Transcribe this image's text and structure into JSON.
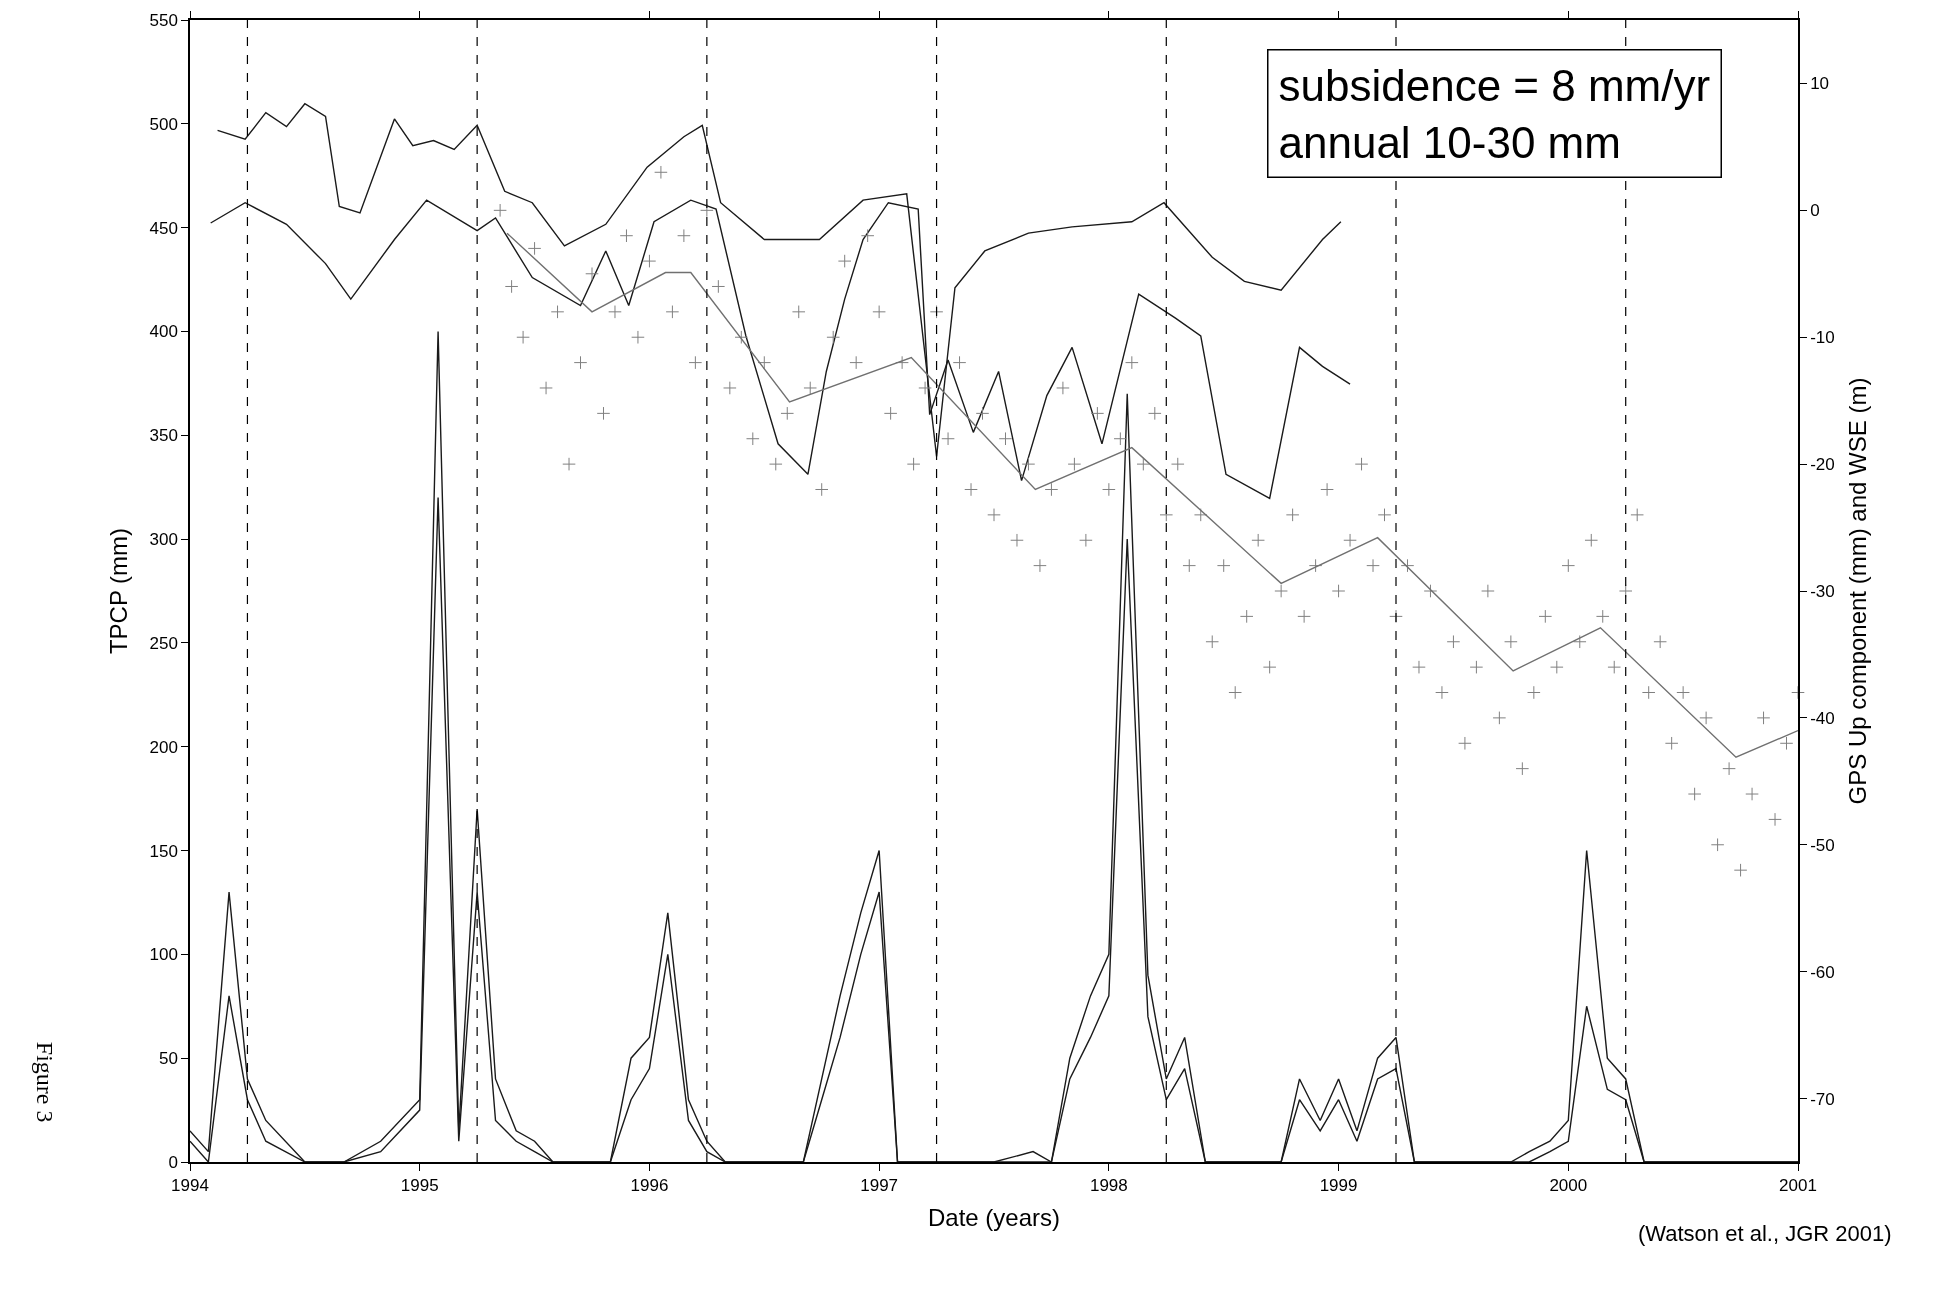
{
  "chart_data": {
    "type": "line",
    "xlabel": "Date (years)",
    "ylabel": "TPCP (mm)",
    "y2label": "GPS Up component (mm) and WSE (m)",
    "xlim": [
      1994,
      2001
    ],
    "xticks": [
      1994,
      1995,
      1996,
      1997,
      1998,
      1999,
      2000,
      2001
    ],
    "ylim": [
      0,
      550
    ],
    "yticks": [
      0,
      50,
      100,
      150,
      200,
      250,
      300,
      350,
      400,
      450,
      500,
      550
    ],
    "y2lim": [
      -75,
      15
    ],
    "y2ticks": [
      -70,
      -60,
      -50,
      -40,
      -30,
      -20,
      -10,
      0,
      10
    ],
    "legend": false,
    "annotations": [
      "subsidence = 8 mm/yr\nannual 10-30 mm",
      "(Watson et al., JGR 2001)",
      "Figure 3"
    ],
    "ref_lines": [
      {
        "axis": "x",
        "value": 1994.25,
        "color": "#000000",
        "line_style": "dashed"
      },
      {
        "axis": "x",
        "value": 1995.25,
        "color": "#000000",
        "line_style": "dashed"
      },
      {
        "axis": "x",
        "value": 1996.25,
        "color": "#000000",
        "line_style": "dashed"
      },
      {
        "axis": "x",
        "value": 1997.25,
        "color": "#000000",
        "line_style": "dashed"
      },
      {
        "axis": "x",
        "value": 1998.25,
        "color": "#000000",
        "line_style": "dashed"
      },
      {
        "axis": "x",
        "value": 1999.25,
        "color": "#000000",
        "line_style": "dashed"
      },
      {
        "axis": "x",
        "value": 2000.25,
        "color": "#000000",
        "line_style": "dashed"
      }
    ],
    "series": [
      {
        "color": "#1a1a1a",
        "x": [
          1994.0,
          1994.08,
          1994.17,
          1994.25,
          1994.33,
          1994.5,
          1994.67,
          1994.83,
          1995.0,
          1995.08,
          1995.17,
          1995.25,
          1995.33,
          1995.42,
          1995.5,
          1995.58,
          1995.83,
          1995.92,
          1996.0,
          1996.08,
          1996.17,
          1996.25,
          1996.33,
          1996.67,
          1996.75,
          1996.83,
          1996.92,
          1997.0,
          1997.08,
          1997.17,
          1997.5,
          1997.67,
          1997.75,
          1997.83,
          1997.92,
          1998.0,
          1998.08,
          1998.17,
          1998.25,
          1998.33,
          1998.42,
          1998.58,
          1998.75,
          1998.83,
          1998.92,
          1999.0,
          1999.08,
          1999.17,
          1999.25,
          1999.33,
          1999.5,
          1999.67,
          1999.75,
          1999.83,
          1999.92,
          2000.0,
          2000.08,
          2000.17,
          2000.25,
          2000.33,
          2001.0
        ],
        "values": [
          15,
          5,
          130,
          40,
          20,
          0,
          0,
          10,
          30,
          400,
          15,
          170,
          40,
          15,
          10,
          0,
          0,
          50,
          60,
          120,
          30,
          10,
          0,
          0,
          40,
          80,
          120,
          150,
          0,
          0,
          0,
          5,
          0,
          50,
          80,
          100,
          370,
          90,
          40,
          60,
          0,
          0,
          0,
          40,
          20,
          40,
          15,
          50,
          60,
          0,
          0,
          0,
          0,
          5,
          10,
          20,
          150,
          50,
          40,
          0,
          0
        ]
      },
      {
        "color": "#1a1a1a",
        "x": [
          1994.0,
          1994.08,
          1994.17,
          1994.25,
          1994.33,
          1994.5,
          1994.67,
          1994.83,
          1995.0,
          1995.08,
          1995.17,
          1995.25,
          1995.33,
          1995.42,
          1995.5,
          1995.58,
          1995.83,
          1995.92,
          1996.0,
          1996.08,
          1996.17,
          1996.25,
          1996.33,
          1996.67,
          1996.75,
          1996.83,
          1996.92,
          1997.0,
          1997.08,
          1997.17,
          1997.5,
          1997.67,
          1997.75,
          1997.83,
          1997.92,
          1998.0,
          1998.08,
          1998.17,
          1998.25,
          1998.33,
          1998.42,
          1998.58,
          1998.75,
          1998.83,
          1998.92,
          1999.0,
          1999.08,
          1999.17,
          1999.25,
          1999.33,
          1999.5,
          1999.67,
          1999.75,
          1999.83,
          1999.92,
          2000.0,
          2000.08,
          2000.17,
          2000.25,
          2000.33,
          2001.0
        ],
        "values": [
          10,
          0,
          80,
          30,
          10,
          0,
          0,
          5,
          25,
          320,
          10,
          130,
          20,
          10,
          5,
          0,
          0,
          30,
          45,
          100,
          20,
          5,
          0,
          0,
          30,
          60,
          100,
          130,
          0,
          0,
          0,
          0,
          0,
          40,
          60,
          80,
          300,
          70,
          30,
          45,
          0,
          0,
          0,
          30,
          15,
          30,
          10,
          40,
          45,
          0,
          0,
          0,
          0,
          0,
          5,
          10,
          75,
          35,
          30,
          0,
          0
        ]
      },
      {
        "color": "#1a1a1a",
        "axis": "y2",
        "x": [
          1994.12,
          1994.24,
          1994.33,
          1994.42,
          1994.5,
          1994.59,
          1994.65,
          1994.74,
          1994.89,
          1994.97,
          1995.06,
          1995.15,
          1995.25,
          1995.37,
          1995.49,
          1995.63,
          1995.81,
          1995.99,
          1996.15,
          1996.23,
          1996.31,
          1996.5,
          1996.74,
          1996.93,
          1997.12,
          1997.25,
          1997.33,
          1997.46,
          1997.65,
          1997.84,
          1998.1,
          1998.24,
          1998.45,
          1998.59,
          1998.75,
          1998.93,
          1999.01
        ],
        "values": [
          6.3,
          5.6,
          7.7,
          6.6,
          8.4,
          7.4,
          0.3,
          -0.2,
          7.2,
          5.1,
          5.5,
          4.8,
          6.7,
          1.5,
          0.6,
          -2.8,
          -1.1,
          3.4,
          5.8,
          6.7,
          0.6,
          -2.3,
          -2.3,
          0.8,
          1.3,
          -19.4,
          -6.1,
          -3.2,
          -1.8,
          -1.3,
          -0.9,
          0.6,
          -3.7,
          -5.6,
          -6.3,
          -2.3,
          -0.9
        ]
      },
      {
        "color": "#1a1a1a",
        "axis": "y2",
        "x": [
          1994.09,
          1994.24,
          1994.42,
          1994.59,
          1994.7,
          1994.89,
          1995.03,
          1995.25,
          1995.33,
          1995.49,
          1995.7,
          1995.81,
          1995.91,
          1996.02,
          1996.18,
          1996.29,
          1996.42,
          1996.56,
          1996.69,
          1996.77,
          1996.85,
          1996.93,
          1997.04,
          1997.17,
          1997.22,
          1997.3,
          1997.41,
          1997.52,
          1997.62,
          1997.73,
          1997.84,
          1997.97,
          1998.13,
          1998.29,
          1998.4,
          1998.51,
          1998.7,
          1998.83,
          1998.93,
          1999.05
        ],
        "values": [
          -1.0,
          0.6,
          -1.1,
          -4.2,
          -7.0,
          -2.3,
          0.8,
          -1.6,
          -0.6,
          -5.3,
          -7.5,
          -3.2,
          -7.5,
          -0.9,
          0.8,
          0.1,
          -9.9,
          -18.4,
          -20.8,
          -12.7,
          -7.0,
          -2.3,
          0.6,
          0.1,
          -16.1,
          -11.8,
          -17.5,
          -12.7,
          -21.3,
          -14.6,
          -10.8,
          -18.4,
          -6.6,
          -8.5,
          -9.9,
          -20.8,
          -22.7,
          -10.8,
          -12.3,
          -13.7
        ]
      },
      {
        "type": "scatter",
        "color": "#808080",
        "axis": "y2",
        "marker": "cross",
        "x": [
          1995.35,
          1995.4,
          1995.45,
          1995.5,
          1995.55,
          1995.6,
          1995.65,
          1995.7,
          1995.75,
          1995.8,
          1995.85,
          1995.9,
          1995.95,
          1996.0,
          1996.05,
          1996.1,
          1996.15,
          1996.2,
          1996.25,
          1996.3,
          1996.35,
          1996.4,
          1996.45,
          1996.5,
          1996.55,
          1996.6,
          1996.65,
          1996.7,
          1996.75,
          1996.8,
          1996.85,
          1996.9,
          1996.95,
          1997.0,
          1997.05,
          1997.1,
          1997.15,
          1997.2,
          1997.25,
          1997.3,
          1997.35,
          1997.4,
          1997.45,
          1997.5,
          1997.55,
          1997.6,
          1997.65,
          1997.7,
          1997.75,
          1997.8,
          1997.85,
          1997.9,
          1997.95,
          1998.0,
          1998.05,
          1998.1,
          1998.15,
          1998.2,
          1998.25,
          1998.3,
          1998.35,
          1998.4,
          1998.45,
          1998.5,
          1998.55,
          1998.6,
          1998.65,
          1998.7,
          1998.75,
          1998.8,
          1998.85,
          1998.9,
          1998.95,
          1999.0,
          1999.05,
          1999.1,
          1999.15,
          1999.2,
          1999.25,
          1999.3,
          1999.35,
          1999.4,
          1999.45,
          1999.5,
          1999.55,
          1999.6,
          1999.65,
          1999.7,
          1999.75,
          1999.8,
          1999.85,
          1999.9,
          1999.95,
          2000.0,
          2000.05,
          2000.1,
          2000.15,
          2000.2,
          2000.25,
          2000.3,
          2000.35,
          2000.4,
          2000.45,
          2000.5,
          2000.55,
          2000.6,
          2000.65,
          2000.7,
          2000.75,
          2000.8,
          2000.85,
          2000.9,
          2000.95,
          2001.0
        ],
        "values": [
          0,
          -6,
          -10,
          -3,
          -14,
          -8,
          -20,
          -12,
          -5,
          -16,
          -8,
          -2,
          -10,
          -4,
          3,
          -8,
          -2,
          -12,
          0,
          -6,
          -14,
          -10,
          -18,
          -12,
          -20,
          -16,
          -8,
          -14,
          -22,
          -10,
          -4,
          -12,
          -2,
          -8,
          -16,
          -12,
          -20,
          -14,
          -8,
          -18,
          -12,
          -22,
          -16,
          -24,
          -18,
          -26,
          -20,
          -28,
          -22,
          -14,
          -20,
          -26,
          -16,
          -22,
          -18,
          -12,
          -20,
          -16,
          -24,
          -20,
          -28,
          -24,
          -34,
          -28,
          -38,
          -32,
          -26,
          -36,
          -30,
          -24,
          -32,
          -28,
          -22,
          -30,
          -26,
          -20,
          -28,
          -24,
          -32,
          -28,
          -36,
          -30,
          -38,
          -34,
          -42,
          -36,
          -30,
          -40,
          -34,
          -44,
          -38,
          -32,
          -36,
          -28,
          -34,
          -26,
          -32,
          -36,
          -30,
          -24,
          -38,
          -34,
          -42,
          -38,
          -46,
          -40,
          -50,
          -44,
          -52,
          -46,
          -40,
          -48,
          -42,
          -38
        ]
      },
      {
        "color": "#707070",
        "axis": "y2",
        "x": [
          1995.38,
          1995.75,
          1996.07,
          1996.18,
          1996.61,
          1997.14,
          1997.68,
          1998.1,
          1998.75,
          1999.17,
          1999.76,
          2000.14,
          2000.73,
          2001.0
        ],
        "values": [
          -1.8,
          -8.0,
          -4.9,
          -4.9,
          -15.1,
          -11.6,
          -22.0,
          -18.7,
          -29.4,
          -25.8,
          -36.3,
          -32.9,
          -43.1,
          -41.0
        ]
      }
    ]
  }
}
